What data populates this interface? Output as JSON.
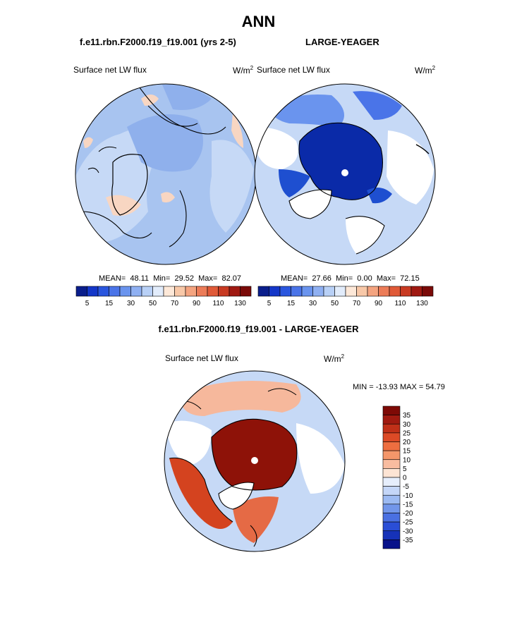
{
  "figure": {
    "title": "ANN",
    "case_label": "f.e11.rbn.F2000.f19_f19.001 (yrs 2-5)",
    "obs_label": "LARGE-YEAGER",
    "diff_label": "f.e11.rbn.F2000.f19_f19.001 - LARGE-YEAGER"
  },
  "chart_data": [
    {
      "type": "heatmap",
      "projection": "polar-stereographic-north",
      "title": "Surface net LW flux",
      "units": "W/m",
      "units_exp": "2",
      "stats": {
        "mean_label": "MEAN=",
        "mean": "48.11",
        "min_label": "Min=",
        "min": "29.52",
        "max_label": "Max=",
        "max": "82.07"
      },
      "colorbar": {
        "orientation": "horizontal",
        "colors": [
          "#0a1e8c",
          "#1437c8",
          "#2a56de",
          "#4a74e8",
          "#6a94ee",
          "#8fb0f2",
          "#b8d0f6",
          "#e2ecfb",
          "#fde8d8",
          "#f8c8a8",
          "#f4a480",
          "#ec7c58",
          "#e05a38",
          "#c83a22",
          "#a01a12",
          "#7a0a08"
        ],
        "tick_labels": [
          "5",
          "15",
          "30",
          "50",
          "70",
          "90",
          "110",
          "130"
        ]
      }
    },
    {
      "type": "heatmap",
      "projection": "polar-stereographic-north",
      "title": "Surface net LW flux",
      "units": "W/m",
      "units_exp": "2",
      "stats": {
        "mean_label": "MEAN=",
        "mean": "27.66",
        "min_label": "Min=",
        "min": "0.00",
        "max_label": "Max=",
        "max": "72.15"
      },
      "colorbar": {
        "orientation": "horizontal",
        "colors": [
          "#0a1e8c",
          "#1437c8",
          "#2a56de",
          "#4a74e8",
          "#6a94ee",
          "#8fb0f2",
          "#b8d0f6",
          "#e2ecfb",
          "#fde8d8",
          "#f8c8a8",
          "#f4a480",
          "#ec7c58",
          "#e05a38",
          "#c83a22",
          "#a01a12",
          "#7a0a08"
        ],
        "tick_labels": [
          "5",
          "15",
          "30",
          "50",
          "70",
          "90",
          "110",
          "130"
        ]
      }
    },
    {
      "type": "heatmap",
      "projection": "polar-stereographic-north",
      "title": "Surface net LW flux",
      "units": "W/m",
      "units_exp": "2",
      "minmax": "MIN = -13.93 MAX =  54.79",
      "colorbar": {
        "orientation": "vertical",
        "colors": [
          "#7e0a06",
          "#a01a10",
          "#c03018",
          "#dc4a26",
          "#ee6e40",
          "#f4966a",
          "#f8bca0",
          "#fde4d4",
          "#e6eefc",
          "#c4d6f8",
          "#9cbaf2",
          "#7296ea",
          "#4a70e2",
          "#2a4ed6",
          "#1632b8",
          "#08128a"
        ],
        "tick_labels": [
          "35",
          "30",
          "25",
          "20",
          "15",
          "10",
          "5",
          "0",
          "-5",
          "-10",
          "-15",
          "-20",
          "-25",
          "-30",
          "-35"
        ]
      }
    }
  ],
  "colors": {
    "ocean_a": "#a8c4f0",
    "ocean_b": "#c6d9f6",
    "arctic_low": "#0a2aa8",
    "arctic_mid": "#1e4fd0",
    "diff_high": "#8e1208",
    "diff_mid": "#d4431f",
    "diff_light": "#f6b89c",
    "land_fill": "#ffffff",
    "coast": "#000000"
  }
}
